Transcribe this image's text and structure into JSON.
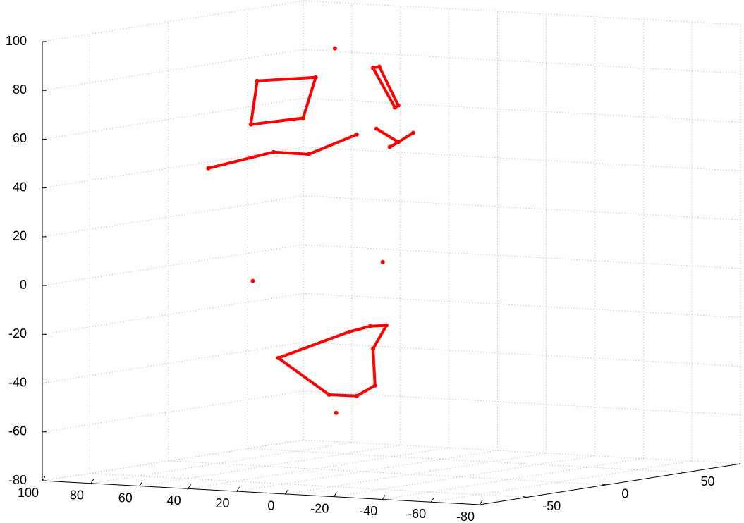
{
  "chart_data": {
    "type": "line3d",
    "xlim": [
      -80,
      100
    ],
    "xticks": [
      -80,
      -60,
      -40,
      -20,
      0,
      20,
      40,
      60,
      80,
      100
    ],
    "ylim": [
      -80,
      85
    ],
    "yticks": [
      -50,
      0,
      50
    ],
    "zlim": [
      -80,
      100
    ],
    "zticks": [
      -80,
      -60,
      -40,
      -20,
      0,
      20,
      40,
      60,
      80,
      100
    ],
    "grid": true,
    "series": [
      {
        "color": "#ff0000",
        "style": "line",
        "x": [
          74.7,
          50.6,
          55.8,
          77.3,
          74.7
        ],
        "y": [
          17,
          17,
          17,
          17,
          17
        ],
        "z": [
          75.4,
          78.2,
          61.2,
          57.4,
          75.4
        ]
      },
      {
        "color": "#ff0000",
        "style": "line",
        "x": [
          94.8,
          68,
          53.5,
          33.7
        ],
        "y": [
          17,
          17,
          17,
          17
        ],
        "z": [
          38.5,
          46.6,
          46.5,
          55.7
        ]
      },
      {
        "color": "#ff0000",
        "style": "line",
        "x": [
          27,
          24.4,
          16.6,
          18,
          27
        ],
        "y": [
          17,
          17,
          17,
          17,
          17
        ],
        "z": [
          83.3,
          84,
          68.5,
          67.6,
          83.3
        ]
      },
      {
        "color": "#ff0000",
        "style": "line",
        "x": [
          25.6,
          16.6,
          10.5
        ],
        "y": [
          17,
          17,
          17
        ],
        "z": [
          58.5,
          53.5,
          57.6
        ]
      },
      {
        "color": "#ff0000",
        "style": "line",
        "x": [
          20.1,
          16.6
        ],
        "y": [
          17,
          17
        ],
        "z": [
          51.3,
          53.5
        ]
      },
      {
        "color": "#ff0000",
        "style": "line",
        "x": [
          66,
          36.9,
          28.2,
          21.5,
          27,
          26.2,
          33.7,
          45.1,
          66
        ],
        "y": [
          17,
          17,
          17,
          17,
          17,
          17,
          17,
          17,
          17
        ],
        "z": [
          -37.7,
          -25.4,
          -22.6,
          -21.9,
          -31.8,
          -46.8,
          -51.5,
          -51.6,
          -37.7
        ]
      },
      {
        "color": "#ff0000",
        "style": "markers",
        "x": [
          42.7,
          76.5,
          23,
          42.2
        ],
        "y": [
          17,
          17,
          17,
          17
        ],
        "z": [
          90.5,
          -6.7,
          4,
          -58.9
        ]
      }
    ]
  }
}
